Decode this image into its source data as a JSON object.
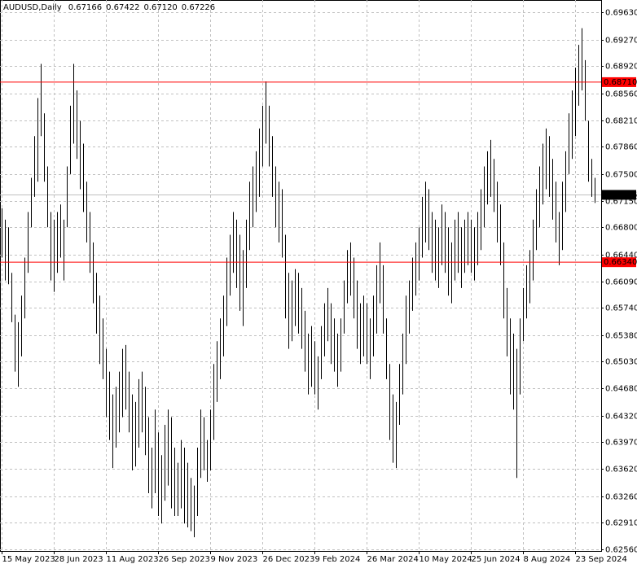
{
  "chart_data": {
    "type": "ohlc",
    "title": "AUDUSD,Daily",
    "header_values": [
      0.67166,
      0.67422,
      0.6712,
      0.67226
    ],
    "header_labels": [
      "0.67166",
      "0.67422",
      "0.67120",
      "0.67226"
    ],
    "color": "#000000",
    "high": [
      0.6705,
      0.669,
      0.668,
      0.662,
      0.6565,
      0.6555,
      0.659,
      0.664,
      0.67,
      0.6745,
      0.68,
      0.685,
      0.6895,
      0.683,
      0.676,
      0.67,
      0.669,
      0.67,
      0.671,
      0.669,
      0.676,
      0.684,
      0.6895,
      0.686,
      0.682,
      0.679,
      0.674,
      0.67,
      0.666,
      0.662,
      0.659,
      0.656,
      0.652,
      0.649,
      0.646,
      0.647,
      0.649,
      0.652,
      0.6525,
      0.649,
      0.646,
      0.645,
      0.648,
      0.649,
      0.647,
      0.643,
      0.639,
      0.644,
      0.641,
      0.638,
      0.642,
      0.644,
      0.643,
      0.639,
      0.637,
      0.64,
      0.639,
      0.637,
      0.635,
      0.634,
      0.639,
      0.644,
      0.643,
      0.64,
      0.644,
      0.65,
      0.653,
      0.656,
      0.659,
      0.664,
      0.667,
      0.67,
      0.669,
      0.667,
      0.665,
      0.669,
      0.674,
      0.676,
      0.678,
      0.681,
      0.684,
      0.6872,
      0.684,
      0.68,
      0.676,
      0.674,
      0.673,
      0.667,
      0.662,
      0.661,
      0.6625,
      0.662,
      0.66,
      0.657,
      0.654,
      0.655,
      0.653,
      0.651,
      0.655,
      0.658,
      0.66,
      0.658,
      0.656,
      0.654,
      0.656,
      0.661,
      0.665,
      0.666,
      0.664,
      0.661,
      0.658,
      0.659,
      0.658,
      0.656,
      0.659,
      0.663,
      0.666,
      0.663,
      0.656,
      0.65,
      0.646,
      0.645,
      0.65,
      0.654,
      0.659,
      0.661,
      0.664,
      0.666,
      0.668,
      0.672,
      0.674,
      0.673,
      0.67,
      0.669,
      0.668,
      0.671,
      0.67,
      0.668,
      0.666,
      0.669,
      0.67,
      0.668,
      0.669,
      0.67,
      0.669,
      0.668,
      0.67,
      0.673,
      0.676,
      0.678,
      0.6795,
      0.677,
      0.674,
      0.671,
      0.666,
      0.66,
      0.656,
      0.654,
      0.652,
      0.656,
      0.66,
      0.663,
      0.665,
      0.669,
      0.673,
      0.676,
      0.679,
      0.681,
      0.68,
      0.677,
      0.674,
      0.67,
      0.674,
      0.678,
      0.683,
      0.686,
      0.689,
      0.692,
      0.6942,
      0.69,
      0.682,
      0.677,
      0.6745
    ],
    "low": [
      0.664,
      0.661,
      0.6605,
      0.6555,
      0.649,
      0.647,
      0.651,
      0.656,
      0.662,
      0.668,
      0.672,
      0.674,
      0.68,
      0.674,
      0.668,
      0.661,
      0.6595,
      0.662,
      0.664,
      0.661,
      0.668,
      0.675,
      0.679,
      0.677,
      0.673,
      0.67,
      0.666,
      0.662,
      0.658,
      0.654,
      0.65,
      0.648,
      0.643,
      0.64,
      0.6363,
      0.639,
      0.641,
      0.643,
      0.644,
      0.641,
      0.636,
      0.6365,
      0.639,
      0.641,
      0.638,
      0.633,
      0.631,
      0.633,
      0.63,
      0.629,
      0.632,
      0.634,
      0.631,
      0.63,
      0.63,
      0.631,
      0.629,
      0.6285,
      0.628,
      0.6272,
      0.63,
      0.635,
      0.636,
      0.6345,
      0.636,
      0.64,
      0.645,
      0.648,
      0.651,
      0.655,
      0.659,
      0.662,
      0.66,
      0.657,
      0.655,
      0.66,
      0.665,
      0.668,
      0.67,
      0.672,
      0.676,
      0.679,
      0.676,
      0.672,
      0.668,
      0.666,
      0.664,
      0.656,
      0.652,
      0.653,
      0.655,
      0.654,
      0.652,
      0.649,
      0.646,
      0.647,
      0.646,
      0.644,
      0.648,
      0.651,
      0.653,
      0.65,
      0.649,
      0.647,
      0.649,
      0.654,
      0.658,
      0.659,
      0.656,
      0.652,
      0.65,
      0.651,
      0.65,
      0.648,
      0.651,
      0.654,
      0.658,
      0.654,
      0.648,
      0.64,
      0.637,
      0.6363,
      0.642,
      0.646,
      0.65,
      0.654,
      0.657,
      0.659,
      0.661,
      0.664,
      0.666,
      0.665,
      0.662,
      0.661,
      0.66,
      0.663,
      0.662,
      0.659,
      0.658,
      0.661,
      0.662,
      0.66,
      0.662,
      0.663,
      0.662,
      0.661,
      0.663,
      0.665,
      0.668,
      0.671,
      0.672,
      0.67,
      0.666,
      0.663,
      0.656,
      0.651,
      0.646,
      0.644,
      0.635,
      0.646,
      0.653,
      0.656,
      0.658,
      0.661,
      0.665,
      0.668,
      0.671,
      0.673,
      0.672,
      0.669,
      0.666,
      0.663,
      0.665,
      0.67,
      0.675,
      0.677,
      0.68,
      0.684,
      0.686,
      0.682,
      0.674,
      0.672,
      0.6712
    ],
    "xlim": [
      -0.5,
      184
    ],
    "xticks": [
      {
        "value": 0,
        "label": "15 May 2023"
      },
      {
        "value": 16,
        "label": "28 Jun 2023"
      },
      {
        "value": 32,
        "label": "11 Aug 2023"
      },
      {
        "value": 48,
        "label": "26 Sep 2023"
      },
      {
        "value": 64,
        "label": "9 Nov 2023"
      },
      {
        "value": 80,
        "label": "26 Dec 2023"
      },
      {
        "value": 96,
        "label": "9 Feb 2024"
      },
      {
        "value": 112,
        "label": "26 Mar 2024"
      },
      {
        "value": 128,
        "label": "10 May 2024"
      },
      {
        "value": 144,
        "label": "25 Jun 2024"
      },
      {
        "value": 160,
        "label": "8 Aug 2024"
      },
      {
        "value": 176,
        "label": "23 Sep 2024"
      }
    ],
    "ylim": [
      0.62539,
      0.69791
    ],
    "yticks": [
      {
        "value": 0.6963,
        "label": "0.69630"
      },
      {
        "value": 0.6927,
        "label": "0.69270"
      },
      {
        "value": 0.6892,
        "label": "0.68920"
      },
      {
        "value": 0.6856,
        "label": "0.68560"
      },
      {
        "value": 0.6821,
        "label": "0.68210"
      },
      {
        "value": 0.6786,
        "label": "0.67860"
      },
      {
        "value": 0.675,
        "label": "0.67500"
      },
      {
        "value": 0.6715,
        "label": "0.67150"
      },
      {
        "value": 0.668,
        "label": "0.66800"
      },
      {
        "value": 0.6644,
        "label": "0.66440"
      },
      {
        "value": 0.6609,
        "label": "0.66090"
      },
      {
        "value": 0.6574,
        "label": "0.65740"
      },
      {
        "value": 0.6538,
        "label": "0.65380"
      },
      {
        "value": 0.6503,
        "label": "0.65030"
      },
      {
        "value": 0.6468,
        "label": "0.64680"
      },
      {
        "value": 0.6432,
        "label": "0.64320"
      },
      {
        "value": 0.6397,
        "label": "0.63970"
      },
      {
        "value": 0.6362,
        "label": "0.63620"
      },
      {
        "value": 0.6326,
        "label": "0.63260"
      },
      {
        "value": 0.6291,
        "label": "0.62910"
      },
      {
        "value": 0.6256,
        "label": "0.62560"
      }
    ],
    "grid": true,
    "levels": [
      {
        "value": 0.6871,
        "label": "0.68710",
        "color": "#ff0000"
      },
      {
        "value": 0.6634,
        "label": "0.66340",
        "color": "#ff0000"
      }
    ],
    "last_price": {
      "value": 0.67226,
      "label": "0.67226",
      "color": "#c0c0c0"
    }
  }
}
